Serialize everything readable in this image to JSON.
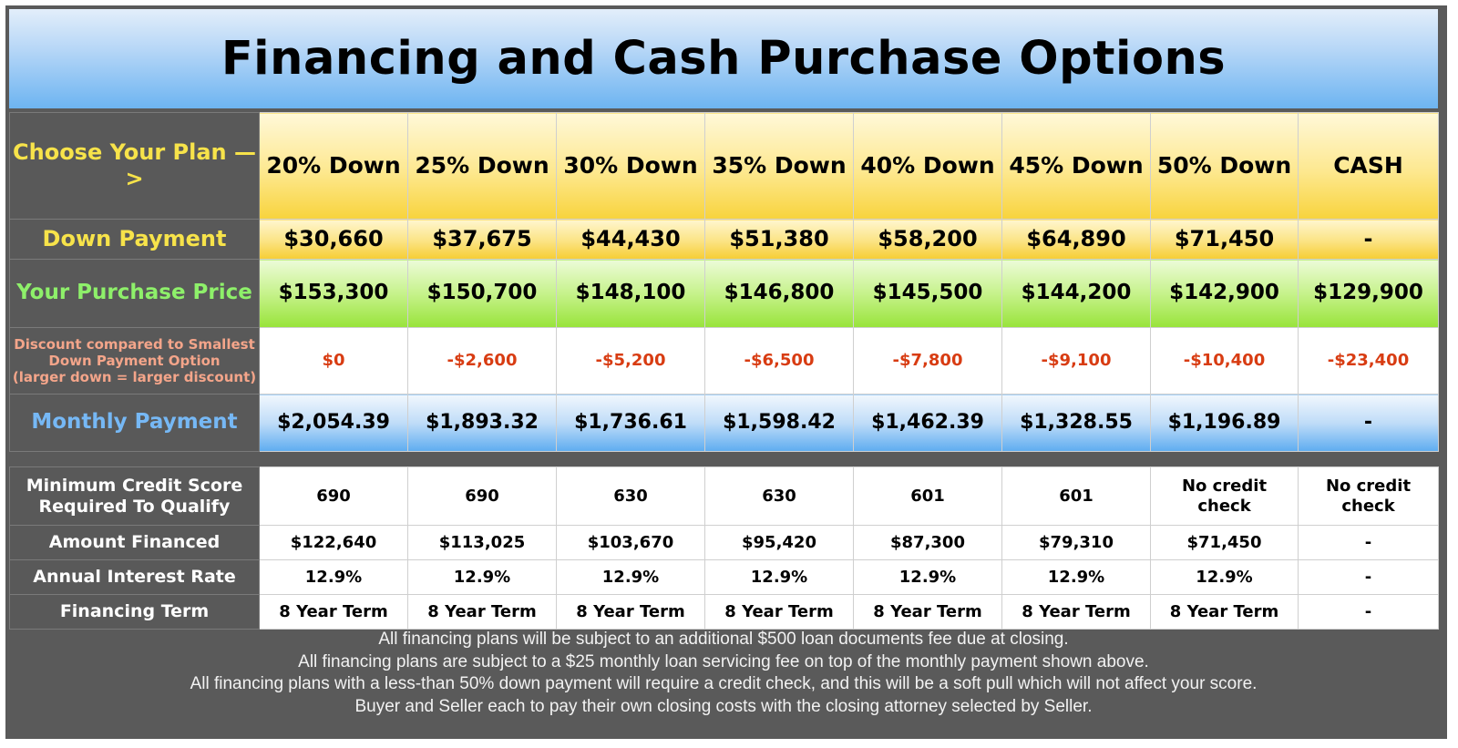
{
  "title": "Financing and Cash Purchase Options",
  "row_labels": {
    "plan": "Choose Your Plan —>",
    "down_payment": "Down Payment",
    "purchase_price": "Your Purchase Price",
    "discount_line1": "Discount compared to Smallest",
    "discount_line2": "Down Payment Option",
    "discount_line3": "(larger down = larger discount)",
    "monthly_payment": "Monthly Payment",
    "credit_line1": "Minimum Credit Score",
    "credit_line2": "Required To Qualify",
    "amount_financed": "Amount Financed",
    "interest_rate": "Annual Interest Rate",
    "term": "Financing Term"
  },
  "plans": [
    {
      "name": "20% Down",
      "down": "$30,660",
      "price": "$153,300",
      "discount": "$0",
      "monthly": "$2,054.39",
      "credit_l1": "690",
      "credit_l2": "",
      "financed": "$122,640",
      "rate": "12.9%",
      "term": "8 Year Term"
    },
    {
      "name": "25% Down",
      "down": "$37,675",
      "price": "$150,700",
      "discount": "-$2,600",
      "monthly": "$1,893.32",
      "credit_l1": "690",
      "credit_l2": "",
      "financed": "$113,025",
      "rate": "12.9%",
      "term": "8 Year Term"
    },
    {
      "name": "30% Down",
      "down": "$44,430",
      "price": "$148,100",
      "discount": "-$5,200",
      "monthly": "$1,736.61",
      "credit_l1": "630",
      "credit_l2": "",
      "financed": "$103,670",
      "rate": "12.9%",
      "term": "8 Year Term"
    },
    {
      "name": "35% Down",
      "down": "$51,380",
      "price": "$146,800",
      "discount": "-$6,500",
      "monthly": "$1,598.42",
      "credit_l1": "630",
      "credit_l2": "",
      "financed": "$95,420",
      "rate": "12.9%",
      "term": "8 Year Term"
    },
    {
      "name": "40% Down",
      "down": "$58,200",
      "price": "$145,500",
      "discount": "-$7,800",
      "monthly": "$1,462.39",
      "credit_l1": "601",
      "credit_l2": "",
      "financed": "$87,300",
      "rate": "12.9%",
      "term": "8 Year Term"
    },
    {
      "name": "45% Down",
      "down": "$64,890",
      "price": "$144,200",
      "discount": "-$9,100",
      "monthly": "$1,328.55",
      "credit_l1": "601",
      "credit_l2": "",
      "financed": "$79,310",
      "rate": "12.9%",
      "term": "8 Year Term"
    },
    {
      "name": "50% Down",
      "down": "$71,450",
      "price": "$142,900",
      "discount": "-$10,400",
      "monthly": "$1,196.89",
      "credit_l1": "No credit",
      "credit_l2": "check",
      "financed": "$71,450",
      "rate": "12.9%",
      "term": "8 Year Term"
    },
    {
      "name": "CASH",
      "down": "-",
      "price": "$129,900",
      "discount": "-$23,400",
      "monthly": "-",
      "credit_l1": "No credit",
      "credit_l2": "check",
      "financed": "-",
      "rate": "-",
      "term": "-"
    }
  ],
  "notes": [
    "All financing plans will be subject to an additional $500 loan documents fee due at closing.",
    "All financing plans are subject to a $25 monthly loan servicing fee on top of the monthly payment shown above.",
    "All financing plans with a less-than 50% down payment will require a credit check, and this will be a soft pull which will not affect your score.",
    "Buyer and Seller each to pay their own closing costs with the closing attorney selected by Seller."
  ],
  "colors": {
    "background": "#5a5a5a",
    "plan_label": "#f7e34a",
    "price_label": "#8ef06a",
    "discount_label": "#f4a58a",
    "discount_value": "#d83c12",
    "monthly_label": "#76b8f5"
  }
}
